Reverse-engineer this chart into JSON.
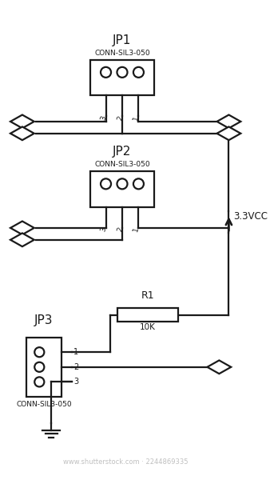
{
  "bg_color": "#ffffff",
  "line_color": "#1a1a1a",
  "text_color": "#1a1a1a",
  "watermark_color": "#c0c0c0",
  "jp1_label": "JP1",
  "jp2_label": "JP2",
  "jp3_label": "JP3",
  "conn_label": "CONN-SIL3-050",
  "r1_label": "R1",
  "r1_val": "10K",
  "vcc_label": "3.3VCC",
  "watermark": "www.shutterstock.com · 2244869335",
  "lw": 1.6
}
